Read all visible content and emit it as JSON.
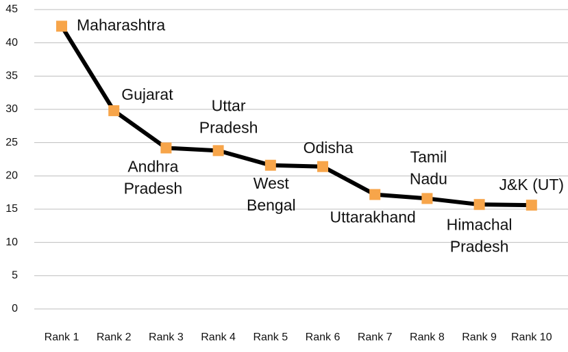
{
  "chart_data": {
    "type": "line",
    "categories": [
      "Rank 1",
      "Rank 2",
      "Rank 3",
      "Rank 4",
      "Rank 5",
      "Rank 6",
      "Rank 7",
      "Rank 8",
      "Rank 9",
      "Rank 10"
    ],
    "values": [
      42.5,
      29.8,
      24.2,
      23.8,
      21.6,
      21.4,
      17.2,
      16.6,
      15.7,
      15.6
    ],
    "point_labels": [
      [
        "Maharashtra"
      ],
      [
        "Gujarat"
      ],
      [
        "Andhra",
        "Pradesh"
      ],
      [
        "Uttar",
        "Pradesh"
      ],
      [
        "West",
        "Bengal"
      ],
      [
        "Odisha"
      ],
      [
        "Uttarakhand"
      ],
      [
        "Tamil",
        "Nadu"
      ],
      [
        "Himachal",
        "Pradesh"
      ],
      [
        "J&K (UT)"
      ]
    ],
    "color": "#000000",
    "marker_color": "#f7a54a",
    "ylim": [
      0,
      45
    ],
    "yticks": [
      0,
      5,
      10,
      15,
      20,
      25,
      30,
      35,
      40,
      45
    ],
    "grid": true
  }
}
